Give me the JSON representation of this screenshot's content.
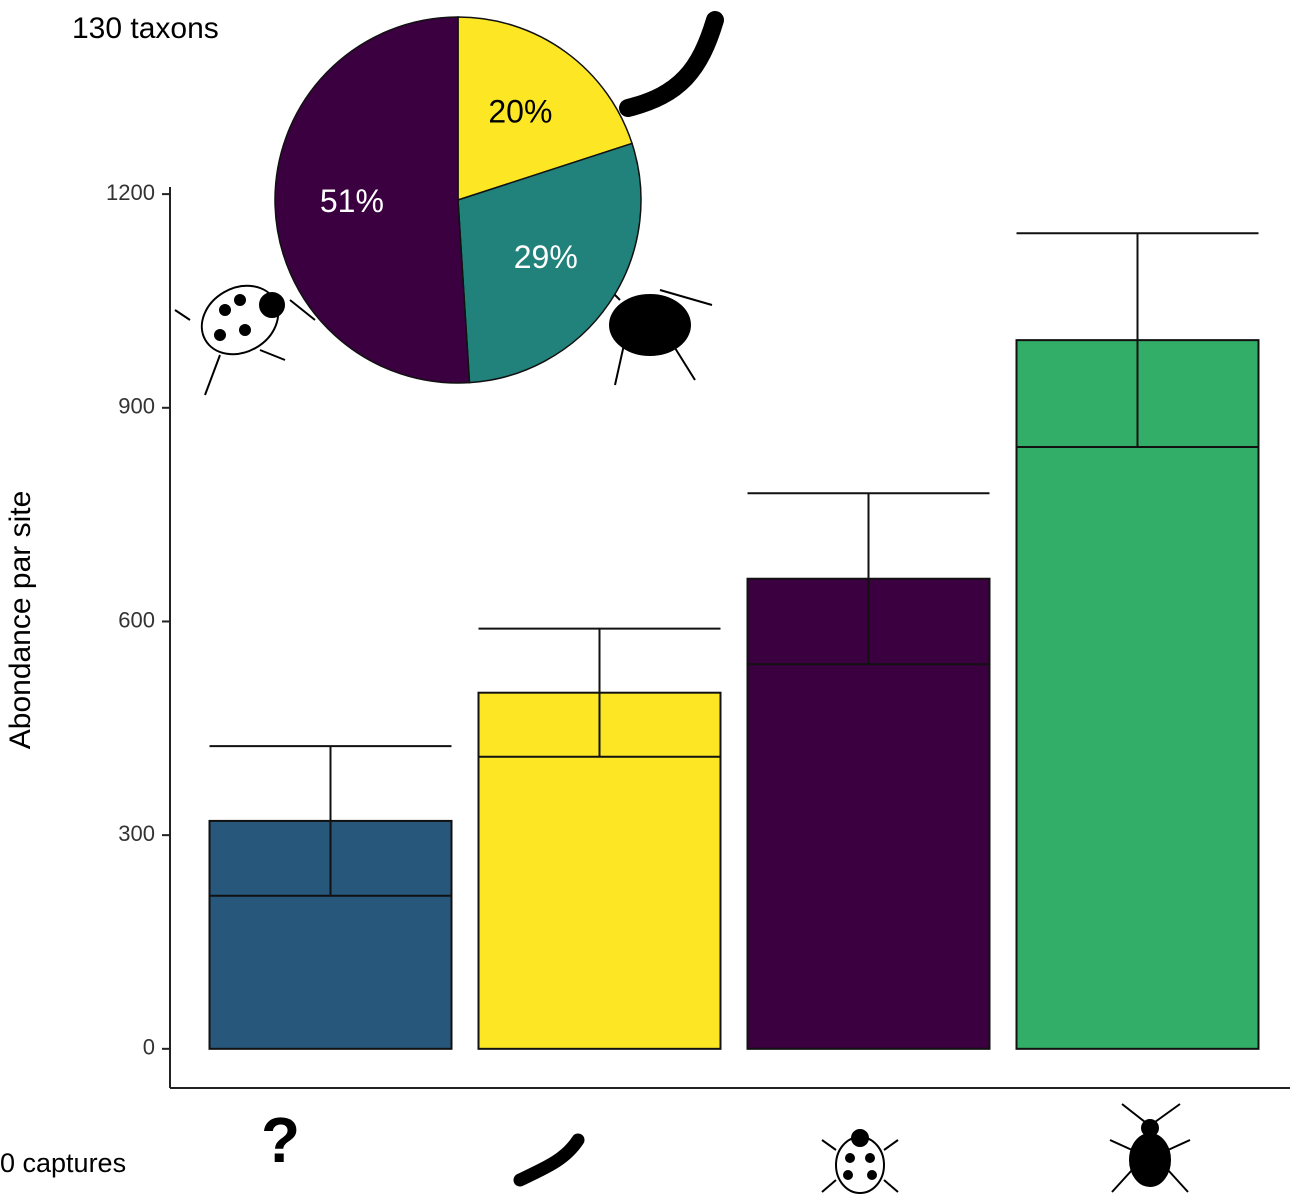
{
  "chart_data": [
    {
      "type": "bar",
      "ylabel": "Abondance par site",
      "categories": [
        "?",
        null,
        null,
        null
      ],
      "values": [
        320,
        500,
        660,
        995
      ],
      "errors": [
        105,
        90,
        120,
        150
      ],
      "colors": [
        "#27587c",
        "#fde725",
        "#3a0040",
        "#33ae68"
      ],
      "ylim": [
        -55,
        1210
      ],
      "yticks": [
        0,
        300,
        600,
        900,
        1200
      ],
      "annotation": "0 captures"
    },
    {
      "type": "pie",
      "title": "130 taxons",
      "values": [
        20,
        29,
        51
      ],
      "value_labels": [
        "20%",
        "29%",
        "51%"
      ],
      "colors": [
        "#fde725",
        "#21827b",
        "#3a0040"
      ],
      "label_colors": [
        "#000000",
        "#ffffff",
        "#ffffff"
      ]
    }
  ]
}
